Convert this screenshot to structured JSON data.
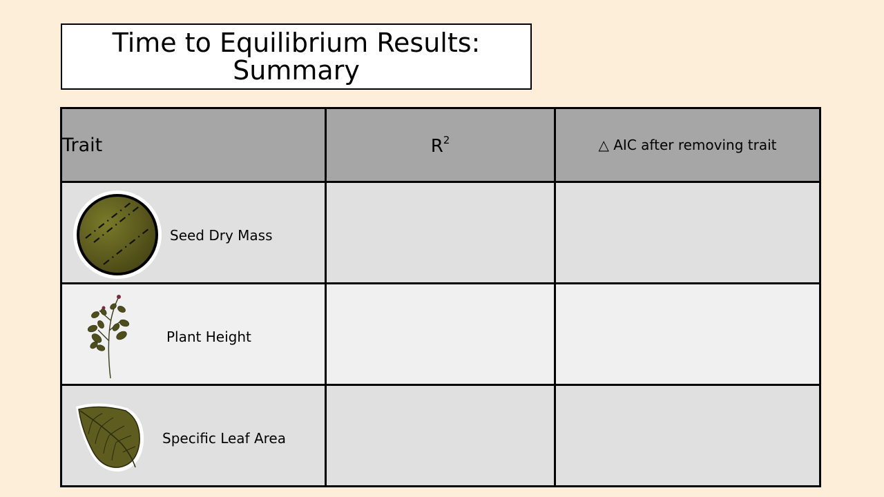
{
  "slide": {
    "title_line1": "Time to Equilibrium Results:",
    "title_line2": "Summary"
  },
  "table": {
    "headers": {
      "trait": "Trait",
      "r2_base": "R",
      "r2_sup": "2",
      "aic": "△ AIC after removing trait"
    },
    "rows": [
      {
        "label": "Seed Dry Mass",
        "icon": "seed-icon",
        "r2": "",
        "aic": ""
      },
      {
        "label": "Plant Height",
        "icon": "plant-icon",
        "r2": "",
        "aic": ""
      },
      {
        "label": "Specific Leaf Area",
        "icon": "leaf-icon",
        "r2": "",
        "aic": ""
      }
    ]
  },
  "colors": {
    "background": "#fdeed9",
    "header_fill": "#a6a6a6",
    "row_fill_dark": "#e0e0e0",
    "row_fill_light": "#f0f0f0",
    "olive": "#5e5c1e"
  }
}
